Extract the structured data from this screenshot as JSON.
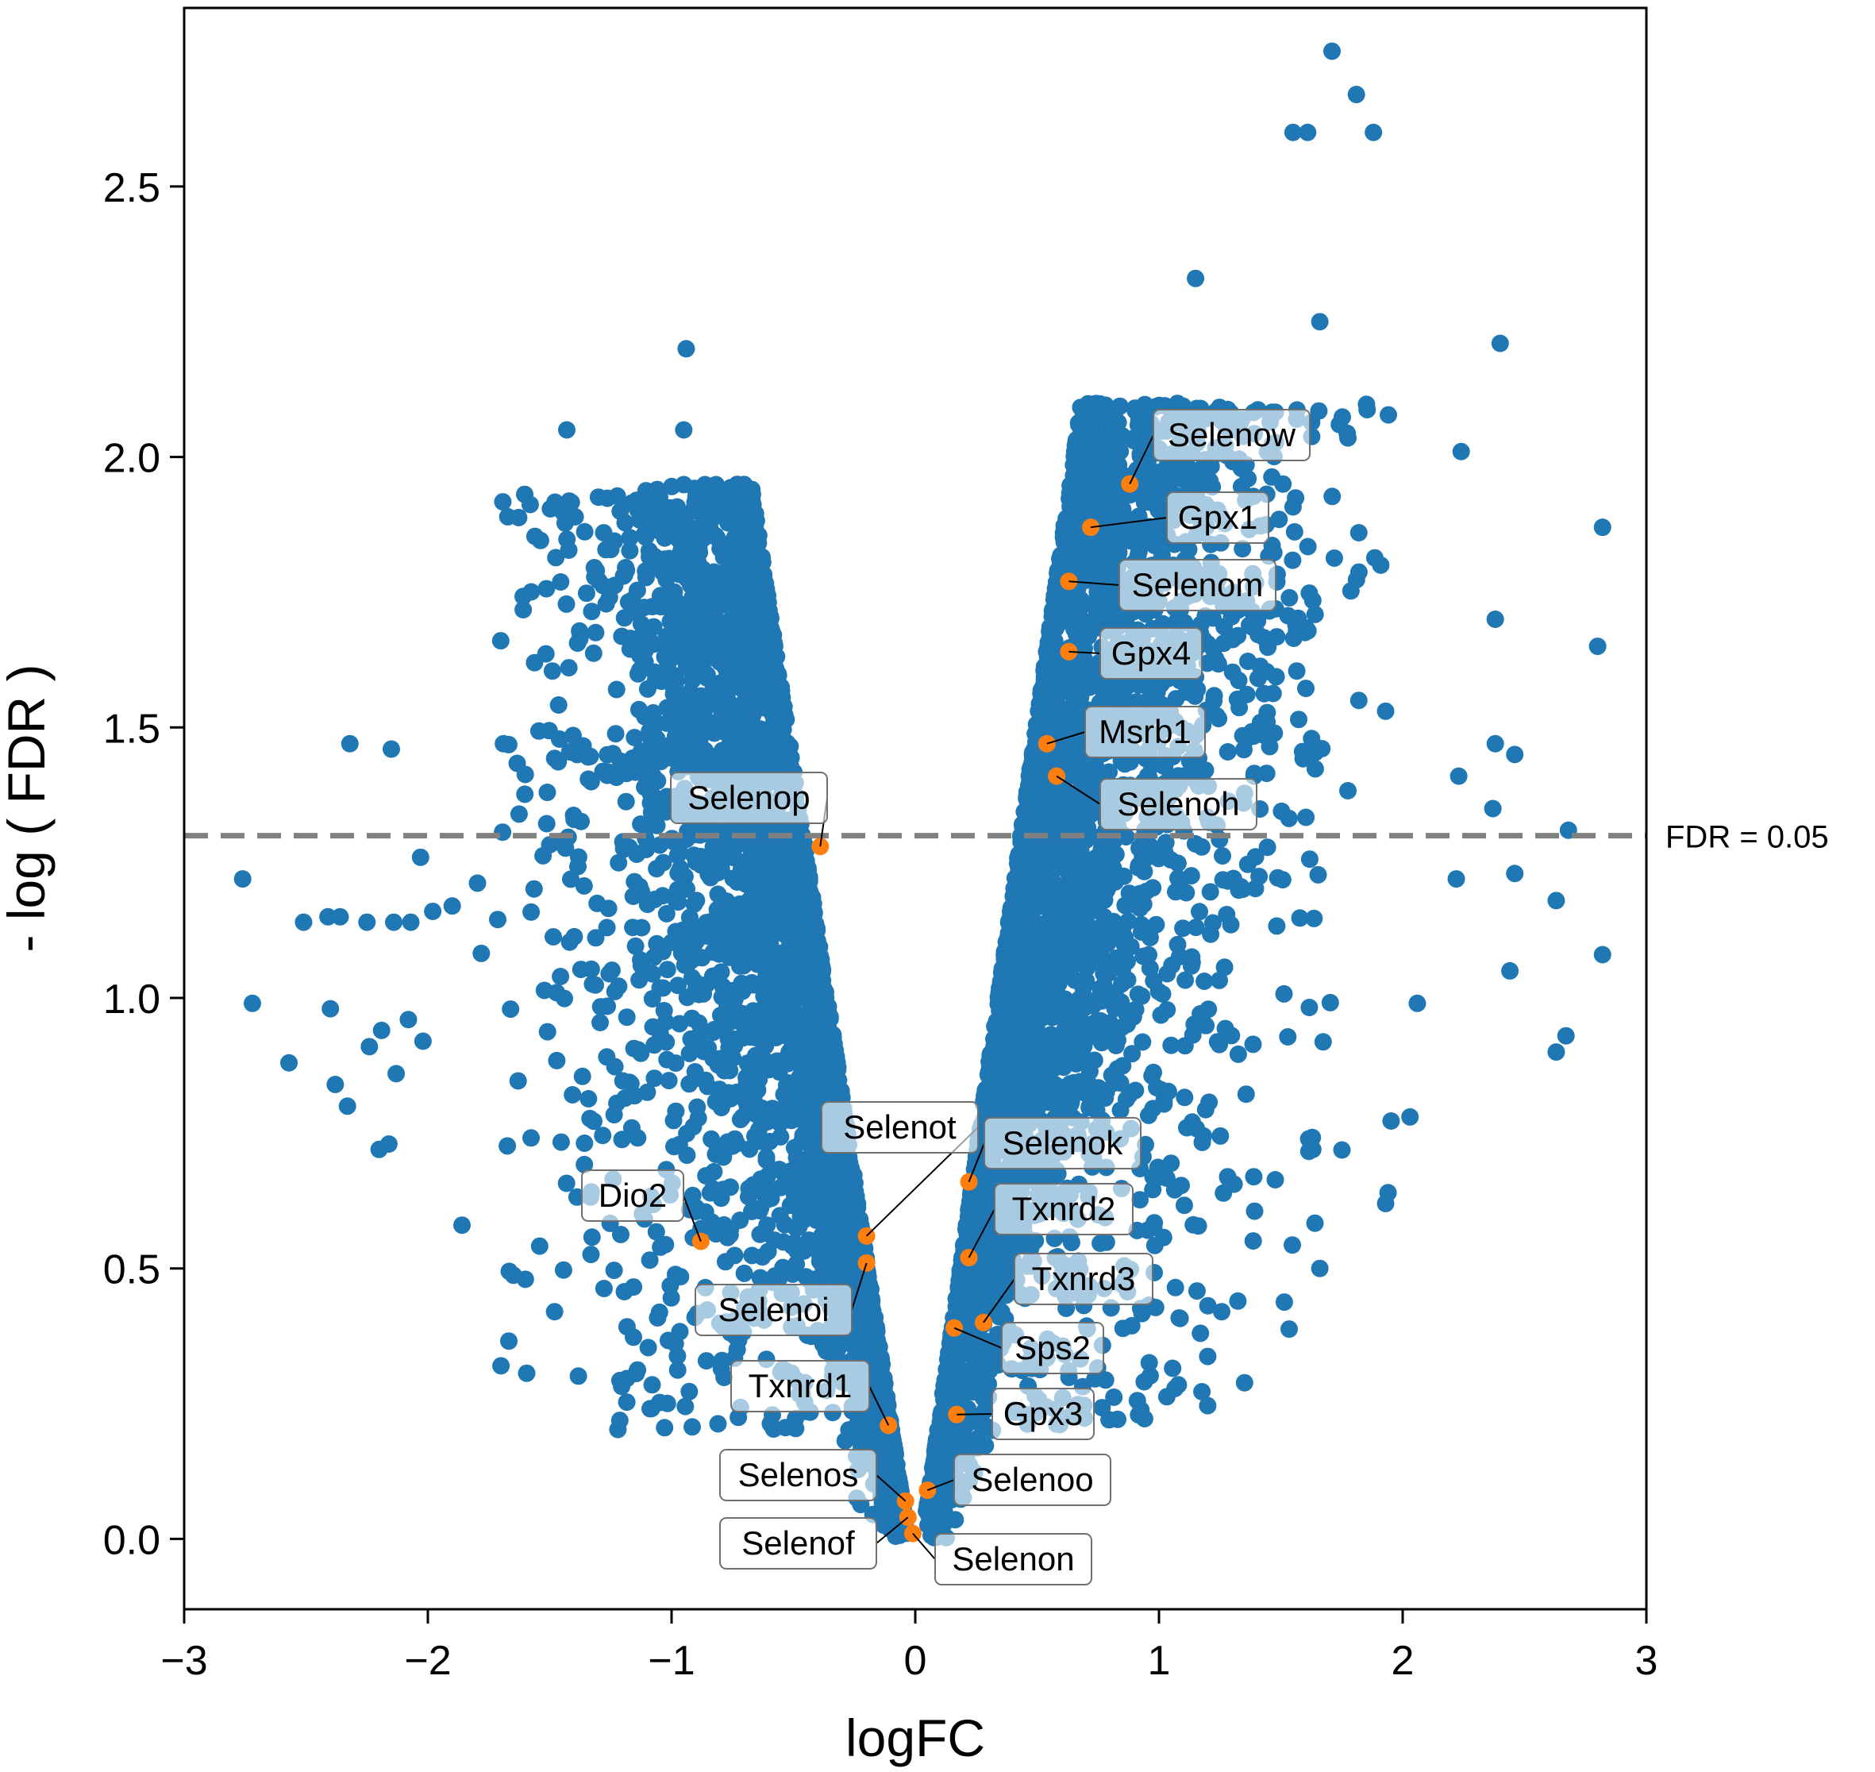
{
  "chart_data": {
    "type": "scatter",
    "title": "",
    "xlabel": "logFC",
    "ylabel": "- log ( FDR )",
    "xlim": [
      -3,
      3
    ],
    "ylim": [
      -0.13,
      2.83
    ],
    "xticks": [
      -3,
      -2,
      -1,
      0,
      1,
      2,
      3
    ],
    "xtick_labels": [
      "−3",
      "−2",
      "−1",
      "0",
      "1",
      "2",
      "3"
    ],
    "yticks": [
      0.0,
      0.5,
      1.0,
      1.5,
      2.0,
      2.5
    ],
    "ytick_labels": [
      "0.0",
      "0.5",
      "1.0",
      "1.5",
      "2.0",
      "2.5"
    ],
    "grid": false,
    "legend": "none",
    "threshold": {
      "y": 1.3,
      "label": "FDR = 0.05",
      "color": "#808080",
      "style": "dashed"
    },
    "colors": {
      "background_genes": "#1f77b4",
      "highlighted_genes": "#ff7f0e"
    },
    "background_outliers": [
      {
        "x": 1.71,
        "y": 2.75
      },
      {
        "x": 1.81,
        "y": 2.67
      },
      {
        "x": 1.55,
        "y": 2.6
      },
      {
        "x": 1.61,
        "y": 2.6
      },
      {
        "x": 1.88,
        "y": 2.6
      },
      {
        "x": 1.15,
        "y": 2.33
      },
      {
        "x": 1.66,
        "y": 2.25
      },
      {
        "x": 2.4,
        "y": 2.21
      },
      {
        "x": 1.74,
        "y": 2.06
      },
      {
        "x": 2.24,
        "y": 2.01
      },
      {
        "x": 1.82,
        "y": 1.86
      },
      {
        "x": 1.91,
        "y": 1.8
      },
      {
        "x": 2.82,
        "y": 1.87
      },
      {
        "x": 2.38,
        "y": 1.7
      },
      {
        "x": 2.8,
        "y": 1.65
      },
      {
        "x": 1.82,
        "y": 1.55
      },
      {
        "x": 1.93,
        "y": 1.53
      },
      {
        "x": 2.38,
        "y": 1.47
      },
      {
        "x": 2.46,
        "y": 1.45
      },
      {
        "x": 2.37,
        "y": 1.35
      },
      {
        "x": 2.23,
        "y": 1.41
      },
      {
        "x": 2.68,
        "y": 1.31
      },
      {
        "x": 2.46,
        "y": 1.23
      },
      {
        "x": 2.22,
        "y": 1.22
      },
      {
        "x": 2.63,
        "y": 1.18
      },
      {
        "x": 2.82,
        "y": 1.08
      },
      {
        "x": 2.44,
        "y": 1.05
      },
      {
        "x": 2.67,
        "y": 0.93
      },
      {
        "x": 2.63,
        "y": 0.9
      },
      {
        "x": 2.06,
        "y": 0.99
      },
      {
        "x": 2.03,
        "y": 0.78
      },
      {
        "x": 1.93,
        "y": 0.62
      },
      {
        "x": 1.94,
        "y": 0.64
      },
      {
        "x": 1.66,
        "y": 0.5
      },
      {
        "x": -0.94,
        "y": 2.2
      },
      {
        "x": -1.43,
        "y": 2.05
      },
      {
        "x": -0.95,
        "y": 2.05
      },
      {
        "x": -2.32,
        "y": 1.47
      },
      {
        "x": -2.15,
        "y": 1.46
      },
      {
        "x": -1.69,
        "y": 1.47
      },
      {
        "x": -1.51,
        "y": 1.38
      },
      {
        "x": -1.4,
        "y": 1.33
      },
      {
        "x": -2.76,
        "y": 1.22
      },
      {
        "x": -2.51,
        "y": 1.14
      },
      {
        "x": -2.41,
        "y": 1.15
      },
      {
        "x": -2.36,
        "y": 1.15
      },
      {
        "x": -2.25,
        "y": 1.14
      },
      {
        "x": -2.14,
        "y": 1.14
      },
      {
        "x": -2.07,
        "y": 1.14
      },
      {
        "x": -1.98,
        "y": 1.16
      },
      {
        "x": -2.03,
        "y": 1.26
      },
      {
        "x": -1.9,
        "y": 1.17
      },
      {
        "x": -2.72,
        "y": 0.99
      },
      {
        "x": -2.57,
        "y": 0.88
      },
      {
        "x": -2.4,
        "y": 0.98
      },
      {
        "x": -2.38,
        "y": 0.84
      },
      {
        "x": -2.33,
        "y": 0.8
      },
      {
        "x": -2.24,
        "y": 0.91
      },
      {
        "x": -2.19,
        "y": 0.94
      },
      {
        "x": -2.13,
        "y": 0.86
      },
      {
        "x": -2.08,
        "y": 0.96
      },
      {
        "x": -2.02,
        "y": 0.92
      },
      {
        "x": -2.2,
        "y": 0.72
      },
      {
        "x": -2.16,
        "y": 0.73
      },
      {
        "x": -1.86,
        "y": 0.58
      },
      {
        "x": -1.7,
        "y": 0.32
      },
      {
        "x": -1.6,
        "y": 0.48
      },
      {
        "x": -1.48,
        "y": 0.42
      }
    ],
    "cloud_envelope": {
      "left_arm_inner": [
        {
          "y": 0.0,
          "x": -0.03
        },
        {
          "y": 1.9,
          "x": -0.68
        }
      ],
      "right_arm_inner": [
        {
          "y": 0.0,
          "x": 0.03
        },
        {
          "y": 2.05,
          "x": 0.7
        }
      ],
      "left_arm_outer": [
        {
          "y": 0.15,
          "x": -0.32
        },
        {
          "y": 1.9,
          "x": -0.72
        }
      ],
      "right_arm_outer": [
        {
          "y": 0.15,
          "x": 0.32
        },
        {
          "y": 2.05,
          "x": 0.85
        }
      ]
    },
    "highlighted_genes": [
      {
        "gene": "Selenow",
        "x": 0.88,
        "y": 1.95
      },
      {
        "gene": "Gpx1",
        "x": 0.72,
        "y": 1.87
      },
      {
        "gene": "Selenom",
        "x": 0.63,
        "y": 1.77
      },
      {
        "gene": "Gpx4",
        "x": 0.63,
        "y": 1.64
      },
      {
        "gene": "Msrb1",
        "x": 0.54,
        "y": 1.47
      },
      {
        "gene": "Selenoh",
        "x": 0.58,
        "y": 1.41
      },
      {
        "gene": "Selenop",
        "x": -0.39,
        "y": 1.28
      },
      {
        "gene": "Selenot",
        "x": -0.2,
        "y": 0.56
      },
      {
        "gene": "Selenok",
        "x": 0.22,
        "y": 0.66
      },
      {
        "gene": "Dio2",
        "x": -0.88,
        "y": 0.55
      },
      {
        "gene": "Txnrd2",
        "x": 0.22,
        "y": 0.52
      },
      {
        "gene": "Selenoi",
        "x": -0.2,
        "y": 0.51
      },
      {
        "gene": "Txnrd3",
        "x": 0.28,
        "y": 0.4
      },
      {
        "gene": "Sps2",
        "x": 0.16,
        "y": 0.39
      },
      {
        "gene": "Gpx3",
        "x": 0.17,
        "y": 0.23
      },
      {
        "gene": "Txnrd1",
        "x": -0.11,
        "y": 0.21
      },
      {
        "gene": "Selenos",
        "x": -0.04,
        "y": 0.07
      },
      {
        "gene": "Selenoo",
        "x": 0.05,
        "y": 0.09
      },
      {
        "gene": "Selenof",
        "x": -0.03,
        "y": 0.04
      },
      {
        "gene": "Selenon",
        "x": -0.01,
        "y": 0.01
      }
    ]
  }
}
